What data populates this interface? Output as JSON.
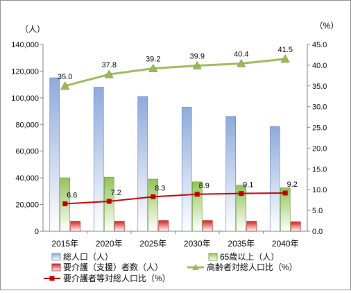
{
  "chart_data": {
    "type": "bar",
    "categories": [
      "2015年",
      "2020年",
      "2025年",
      "2030年",
      "2035年",
      "2040年"
    ],
    "y_left": {
      "unit": "（人）",
      "min": 0,
      "max": 140000,
      "step": 20000,
      "tick_labels": [
        "0",
        "20,000",
        "40,000",
        "60,000",
        "80,000",
        "100,000",
        "120,000",
        "140,000"
      ]
    },
    "y_right": {
      "unit": "（%）",
      "min": 0,
      "max": 45,
      "step": 5,
      "tick_labels": [
        "0.0",
        "5.0",
        "10.0",
        "15.0",
        "20.0",
        "25.0",
        "30.0",
        "35.0",
        "40.0",
        "45.0"
      ]
    },
    "series": [
      {
        "name": "総人口（人）",
        "type": "bar",
        "axis": "left",
        "color": "#8eaadb",
        "values": [
          115000,
          108000,
          101000,
          93000,
          86000,
          78500
        ]
      },
      {
        "name": "65歳以上（人）",
        "type": "bar",
        "axis": "left",
        "color": "#92c458",
        "values": [
          40000,
          40500,
          39000,
          37000,
          34500,
          32500
        ]
      },
      {
        "name": "要介護（支援）者数（人）",
        "type": "bar",
        "axis": "left",
        "color": "#e03030",
        "values": [
          7500,
          7500,
          8000,
          8000,
          7500,
          7000
        ]
      },
      {
        "name": "高齢者対総人口比（%）",
        "type": "line",
        "axis": "right",
        "color": "#9bbb59",
        "values": [
          35.0,
          37.8,
          39.2,
          39.9,
          40.4,
          41.5
        ],
        "labels": [
          "35.0",
          "37.8",
          "39.2",
          "39.9",
          "40.4",
          "41.5"
        ]
      },
      {
        "name": "要介護者等対総人口比（%）",
        "type": "line",
        "axis": "right",
        "color": "#c00000",
        "values": [
          6.6,
          7.2,
          8.3,
          8.9,
          9.1,
          9.2
        ],
        "labels": [
          "6.6",
          "7.2",
          "8.3",
          "8.9",
          "9.1",
          "9.2"
        ]
      }
    ],
    "legend": "bottom",
    "grid": false
  }
}
